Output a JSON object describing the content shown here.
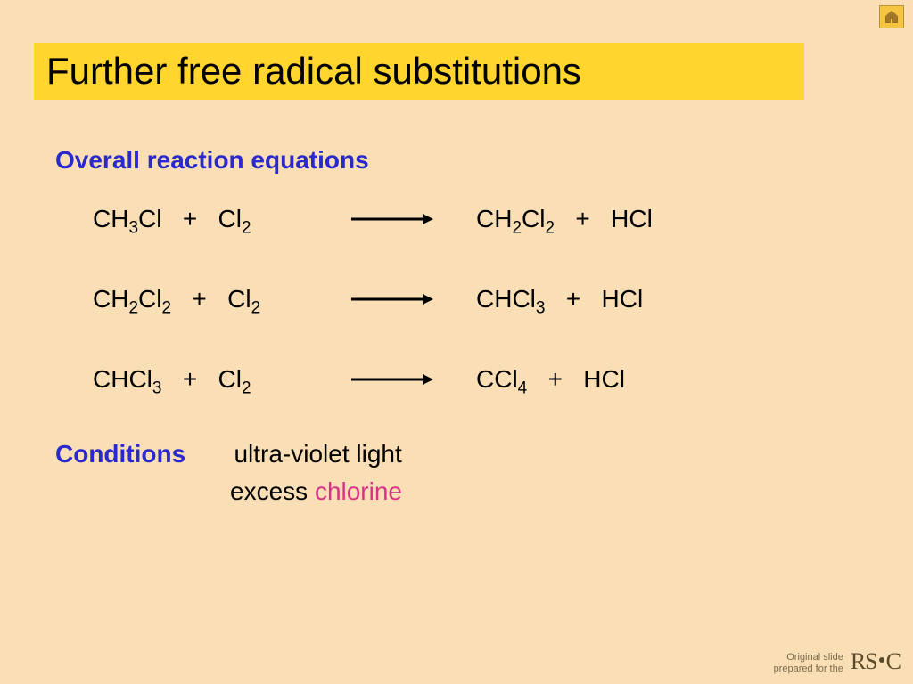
{
  "colors": {
    "slide_bg": "#fadfb6",
    "title_bg": "#ffd52e",
    "title_text": "#000000",
    "heading_text": "#2929cc",
    "body_text": "#000000",
    "highlight_text": "#d63384",
    "home_bg": "#f5c542",
    "home_border": "#b8923a",
    "footer_text": "#7a6a4a",
    "arrow_color": "#000000"
  },
  "typography": {
    "title_fontsize": 42,
    "heading_fontsize": 28,
    "body_fontsize": 28,
    "footer_fontsize": 11
  },
  "title": "Further free radical substitutions",
  "section_heading": "Overall reaction equations",
  "equations": [
    {
      "left_html": "CH<sub>3</sub>Cl&nbsp;&nbsp;&nbsp;+&nbsp;&nbsp;&nbsp;Cl<sub>2</sub>",
      "right_html": "CH<sub>2</sub>Cl<sub>2</sub>&nbsp;&nbsp;&nbsp;+&nbsp;&nbsp;&nbsp;HCl"
    },
    {
      "left_html": "CH<sub>2</sub>Cl<sub>2</sub>&nbsp;&nbsp;&nbsp;+&nbsp;&nbsp;&nbsp;Cl<sub>2</sub>",
      "right_html": "CHCl<sub>3</sub>&nbsp;&nbsp;&nbsp;+&nbsp;&nbsp;&nbsp;HCl"
    },
    {
      "left_html": "CHCl<sub>3</sub>&nbsp;&nbsp;&nbsp;+&nbsp;&nbsp;&nbsp;Cl<sub>2</sub>",
      "right_html": "CCl<sub>4</sub>&nbsp;&nbsp;&nbsp;+&nbsp;&nbsp;&nbsp;HCl"
    }
  ],
  "conditions": {
    "label": "Conditions",
    "line1": "ultra-violet light",
    "line2_prefix": "excess ",
    "line2_highlight": "chlorine"
  },
  "footer": {
    "line1": "Original slide",
    "line2": "prepared for the",
    "logo_rs": "RS",
    "logo_c": "C"
  }
}
